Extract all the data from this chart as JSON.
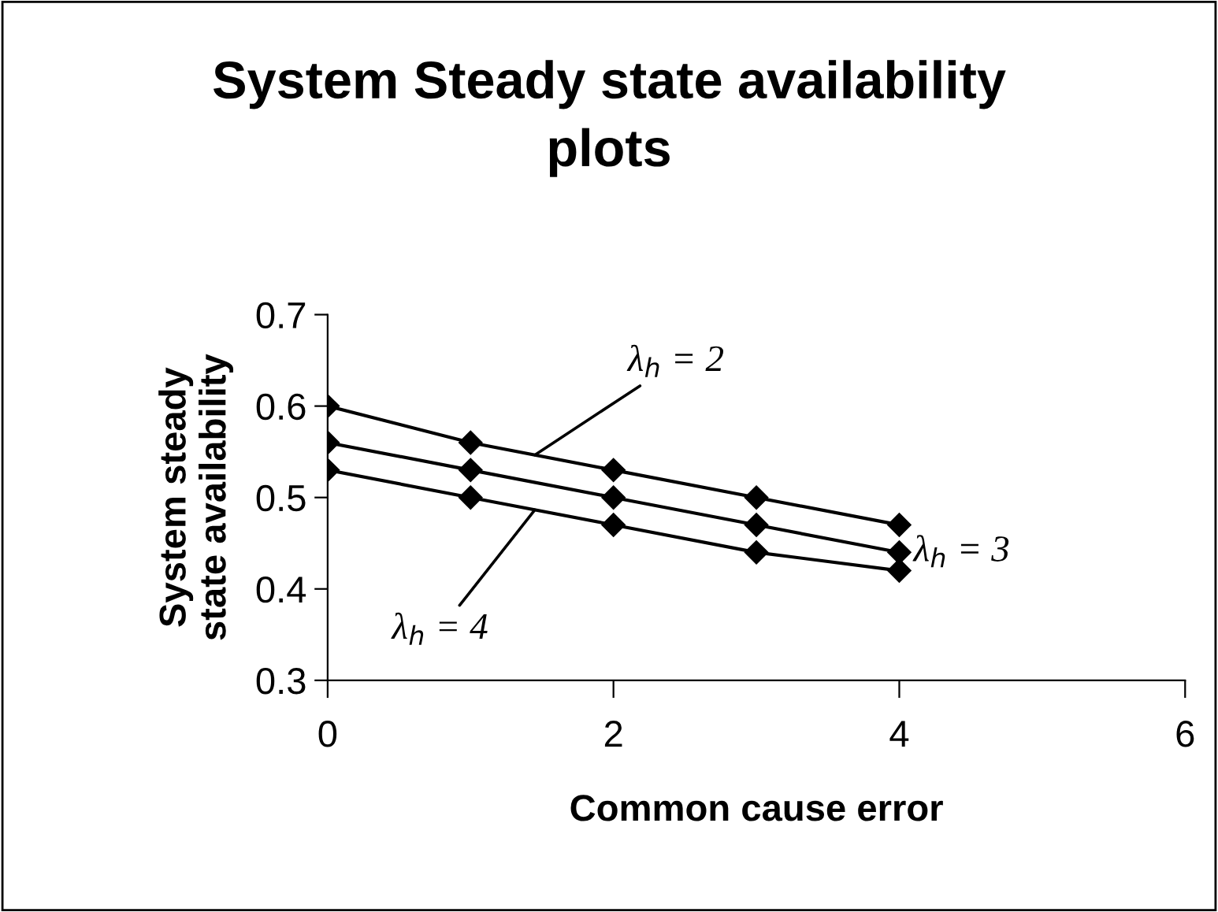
{
  "chart_data": {
    "type": "line",
    "title": "System Steady state availability\nplots",
    "xlabel": "Common cause error",
    "ylabel": "System steady\nstate availability",
    "x": [
      0,
      1,
      2,
      3,
      4
    ],
    "series": [
      {
        "name": "λ$_{h}$ = 2",
        "color": "#000000",
        "values": [
          0.6,
          0.56,
          0.53,
          0.5,
          0.47
        ]
      },
      {
        "name": "λ$_{h}$ = 3",
        "color": "#000000",
        "values": [
          0.56,
          0.53,
          0.5,
          0.47,
          0.44
        ]
      },
      {
        "name": "λ$_{h}$ = 4",
        "color": "#000000",
        "values": [
          0.53,
          0.5,
          0.47,
          0.44,
          0.42
        ]
      }
    ],
    "xlim": [
      0,
      6
    ],
    "xticks": [
      0,
      2,
      4,
      6
    ],
    "ylim": [
      0.3,
      0.7
    ],
    "yticks": [
      0.3,
      0.4,
      0.5,
      0.6,
      0.7
    ],
    "grid": false,
    "legend": false,
    "marker": "diamond",
    "line_style": "solid"
  }
}
